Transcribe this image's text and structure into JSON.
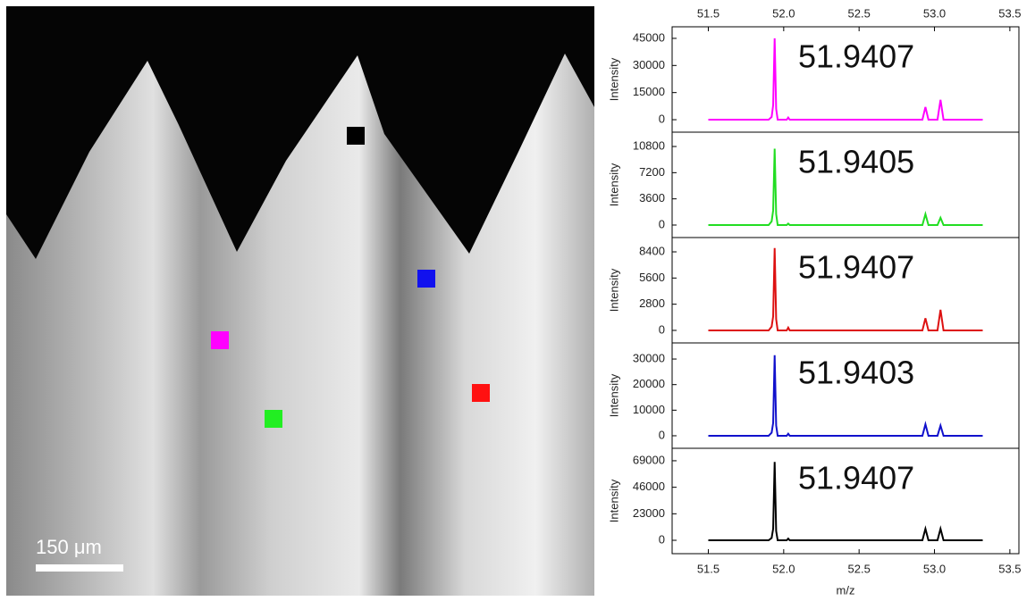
{
  "image": {
    "scale_bar": "150 μm"
  },
  "chart_data": [
    {
      "type": "line",
      "ylabel": "Intensity",
      "annotation": "51.9407",
      "color": "#ff00ff",
      "xlim": [
        51.26,
        53.56
      ],
      "ylim": [
        -6900,
        51400
      ],
      "yticks": [
        0,
        15000,
        30000,
        45000
      ],
      "xticks": [
        51.5,
        {
          "value": 52,
          "label": "52.0"
        },
        52.5,
        {
          "value": 53,
          "label": "53.0"
        },
        53.5
      ],
      "x": [
        51.5,
        51.9,
        51.92,
        51.93,
        51.94,
        51.95,
        51.96,
        52.02,
        52.03,
        52.04,
        52.92,
        52.94,
        52.96,
        53.02,
        53.04,
        53.06,
        53.32
      ],
      "values": [
        0,
        0,
        1500,
        8000,
        45000,
        6000,
        0,
        0,
        1200,
        0,
        0,
        7000,
        0,
        0,
        11000,
        0,
        0
      ]
    },
    {
      "type": "line",
      "ylabel": "Intensity",
      "annotation": "51.9405",
      "color": "#22dd22",
      "xlim": [
        51.26,
        53.56
      ],
      "ylim": [
        -1720,
        12770
      ],
      "yticks": [
        0,
        3600,
        7200,
        10800
      ],
      "x": [
        51.5,
        51.9,
        51.92,
        51.93,
        51.94,
        51.95,
        51.96,
        52.02,
        52.03,
        52.04,
        52.92,
        52.94,
        52.96,
        53.02,
        53.04,
        53.06,
        53.32
      ],
      "values": [
        0,
        0,
        500,
        2000,
        10500,
        1500,
        0,
        0,
        200,
        0,
        0,
        1500,
        0,
        0,
        1000,
        0,
        0
      ]
    },
    {
      "type": "line",
      "ylabel": "Intensity",
      "annotation": "51.9407",
      "color": "#dd1111",
      "xlim": [
        51.26,
        53.56
      ],
      "ylim": [
        -1340,
        9930
      ],
      "yticks": [
        0,
        2800,
        5600,
        8400
      ],
      "x": [
        51.5,
        51.9,
        51.92,
        51.93,
        51.94,
        51.95,
        51.96,
        52.02,
        52.03,
        52.04,
        52.92,
        52.94,
        52.96,
        53.02,
        53.04,
        53.06,
        53.32
      ],
      "values": [
        0,
        0,
        400,
        1500,
        8800,
        1200,
        0,
        0,
        300,
        0,
        0,
        1300,
        0,
        0,
        2200,
        0,
        0
      ]
    },
    {
      "type": "line",
      "ylabel": "Intensity",
      "annotation": "51.9403",
      "color": "#1111cc",
      "xlim": [
        51.26,
        53.56
      ],
      "ylim": [
        -4900,
        36300
      ],
      "yticks": [
        0,
        10000,
        20000,
        30000
      ],
      "x": [
        51.5,
        51.9,
        51.92,
        51.93,
        51.94,
        51.95,
        51.96,
        52.02,
        52.03,
        52.04,
        52.92,
        52.94,
        52.96,
        53.02,
        53.04,
        53.06,
        53.32
      ],
      "values": [
        0,
        0,
        1200,
        5000,
        31500,
        4000,
        0,
        0,
        800,
        0,
        0,
        4500,
        0,
        0,
        4000,
        0,
        0
      ]
    },
    {
      "type": "line",
      "ylabel": "Intensity",
      "annotation": "51.9407",
      "color": "#000000",
      "xlim": [
        51.26,
        53.56
      ],
      "ylim": [
        -11600,
        79800
      ],
      "yticks": [
        0,
        23000,
        46000,
        69000
      ],
      "xticks": [
        51.5,
        {
          "value": 52,
          "label": "52.0"
        },
        52.5,
        {
          "value": 53,
          "label": "53.0"
        },
        53.5
      ],
      "xlabel": "m/z",
      "x": [
        51.5,
        51.9,
        51.92,
        51.93,
        51.94,
        51.95,
        51.96,
        52.02,
        52.03,
        52.04,
        52.92,
        52.94,
        52.96,
        53.02,
        53.04,
        53.06,
        53.32
      ],
      "values": [
        0,
        0,
        2000,
        10000,
        68000,
        8000,
        0,
        0,
        1500,
        0,
        0,
        10000,
        0,
        0,
        10000,
        0,
        0
      ]
    }
  ]
}
